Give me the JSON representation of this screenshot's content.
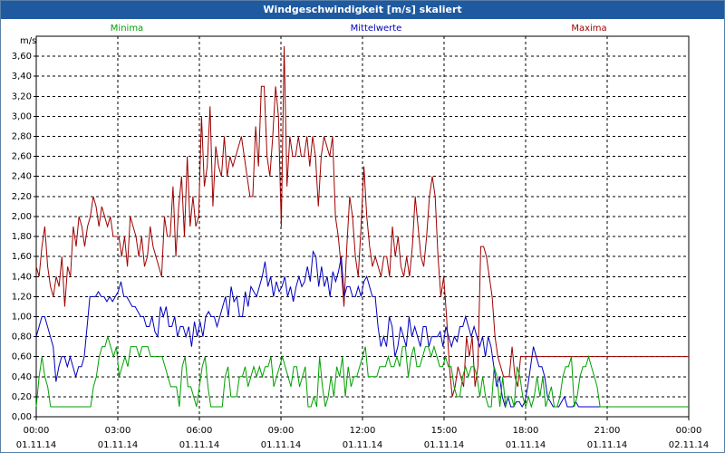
{
  "window": {
    "title": "Windgeschwindigkeit [m/s] skaliert"
  },
  "chart_data": {
    "type": "line",
    "title": "Windgeschwindigkeit [m/s] skaliert",
    "ylabel": "m/s",
    "xlabel": "",
    "ylim": [
      0,
      3.8
    ],
    "xlim": [
      0,
      24
    ],
    "grid": true,
    "legend_position": "top",
    "yticks": [
      "0,00",
      "0,20",
      "0,40",
      "0,60",
      "0,80",
      "1,00",
      "1,20",
      "1,40",
      "1,60",
      "1,80",
      "2,00",
      "2,20",
      "2,40",
      "2,60",
      "2,80",
      "3,00",
      "3,20",
      "3,40",
      "3,60"
    ],
    "xticks": [
      {
        "time": "00:00",
        "date": "01.11.14"
      },
      {
        "time": "03:00",
        "date": "01.11.14"
      },
      {
        "time": "06:00",
        "date": "01.11.14"
      },
      {
        "time": "09:00",
        "date": "01.11.14"
      },
      {
        "time": "12:00",
        "date": "01.11.14"
      },
      {
        "time": "15:00",
        "date": "01.11.14"
      },
      {
        "time": "18:00",
        "date": "01.11.14"
      },
      {
        "time": "21:00",
        "date": "01.11.14"
      },
      {
        "time": "00:00",
        "date": "02.11.14"
      }
    ],
    "series": [
      {
        "name": "Minima",
        "color": "#00a000",
        "values": [
          0.1,
          0.4,
          0.6,
          0.4,
          0.3,
          0.1,
          0.1,
          0.1,
          0.1,
          0.1,
          0.1,
          0.1,
          0.1,
          0.1,
          0.1,
          0.1,
          0.1,
          0.1,
          0.1,
          0.1,
          0.3,
          0.4,
          0.6,
          0.7,
          0.7,
          0.8,
          0.7,
          0.6,
          0.7,
          0.4,
          0.5,
          0.6,
          0.5,
          0.7,
          0.7,
          0.7,
          0.6,
          0.7,
          0.7,
          0.7,
          0.6,
          0.6,
          0.6,
          0.6,
          0.6,
          0.5,
          0.4,
          0.3,
          0.3,
          0.3,
          0.1,
          0.5,
          0.6,
          0.3,
          0.3,
          0.2,
          0.1,
          0.3,
          0.5,
          0.6,
          0.3,
          0.1,
          0.1,
          0.1,
          0.1,
          0.1,
          0.4,
          0.5,
          0.2,
          0.2,
          0.2,
          0.4,
          0.4,
          0.5,
          0.3,
          0.4,
          0.5,
          0.4,
          0.5,
          0.4,
          0.5,
          0.5,
          0.6,
          0.3,
          0.4,
          0.5,
          0.6,
          0.5,
          0.4,
          0.3,
          0.5,
          0.5,
          0.3,
          0.4,
          0.5,
          0.1,
          0.1,
          0.2,
          0.1,
          0.6,
          0.3,
          0.1,
          0.2,
          0.4,
          0.2,
          0.5,
          0.4,
          0.6,
          0.2,
          0.5,
          0.3,
          0.4,
          0.4,
          0.5,
          0.6,
          0.7,
          0.4,
          0.4,
          0.4,
          0.4,
          0.5,
          0.5,
          0.5,
          0.6,
          0.5,
          0.5,
          0.6,
          0.5,
          0.7,
          0.7,
          0.4,
          0.6,
          0.7,
          0.5,
          0.5,
          0.6,
          0.7,
          0.7,
          0.6,
          0.7,
          0.6,
          0.5,
          0.5,
          0.6,
          0.5,
          0.5,
          0.3,
          0.2,
          0.2,
          0.4,
          0.5,
          0.4,
          0.5,
          0.5,
          0.4,
          0.2,
          0.4,
          0.2,
          0.1,
          0.1,
          0.5,
          0.4,
          0.1,
          0.4,
          0.1,
          0.2,
          0.2,
          0.1,
          0.5,
          0.4,
          0.2,
          0.1,
          0.2,
          0.1,
          0.2,
          0.4,
          0.2,
          0.4,
          0.1,
          0.2,
          0.3,
          0.1,
          0.1,
          0.2,
          0.4,
          0.5,
          0.5,
          0.6,
          0.1,
          0.2,
          0.4,
          0.5,
          0.5,
          0.6,
          0.5,
          0.4,
          0.3,
          0.1,
          0.1,
          0.1,
          0.1,
          0.1,
          0.1,
          0.1,
          0.1,
          0.1,
          0.1,
          0.1,
          0.1,
          0.1,
          0.1,
          0.1,
          0.1,
          0.1,
          0.1,
          0.1,
          0.1,
          0.1,
          0.1,
          0.1,
          0.1,
          0.1,
          0.1,
          0.1,
          0.1,
          0.1,
          0.1,
          0.1,
          0.1
        ]
      },
      {
        "name": "Mittelwerte",
        "color": "#0000c0",
        "values": [
          0.8,
          0.9,
          1.0,
          1.0,
          0.9,
          0.8,
          0.7,
          0.35,
          0.5,
          0.6,
          0.6,
          0.5,
          0.6,
          0.5,
          0.4,
          0.5,
          0.5,
          0.6,
          0.9,
          1.2,
          1.2,
          1.2,
          1.25,
          1.2,
          1.2,
          1.15,
          1.2,
          1.15,
          1.2,
          1.25,
          1.35,
          1.2,
          1.2,
          1.15,
          1.1,
          1.1,
          1.05,
          1.0,
          1.0,
          0.9,
          0.9,
          1.0,
          0.85,
          0.8,
          1.1,
          1.0,
          1.1,
          0.9,
          0.9,
          1.0,
          0.8,
          0.9,
          0.9,
          0.8,
          0.9,
          0.7,
          0.95,
          0.8,
          0.95,
          0.8,
          1.0,
          1.05,
          1.0,
          1.0,
          0.9,
          1.0,
          1.1,
          1.2,
          1.0,
          1.3,
          1.15,
          1.2,
          1.0,
          1.0,
          1.25,
          1.1,
          1.3,
          1.25,
          1.2,
          1.3,
          1.4,
          1.55,
          1.3,
          1.4,
          1.2,
          1.35,
          1.25,
          1.3,
          1.4,
          1.2,
          1.3,
          1.15,
          1.3,
          1.4,
          1.3,
          1.35,
          1.5,
          1.35,
          1.65,
          1.6,
          1.3,
          1.5,
          1.3,
          1.4,
          1.2,
          1.45,
          1.35,
          1.45,
          1.6,
          1.2,
          1.3,
          1.3,
          1.2,
          1.2,
          1.3,
          1.2,
          1.35,
          1.4,
          1.3,
          1.2,
          1.2,
          0.9,
          0.7,
          0.8,
          0.7,
          1.0,
          0.9,
          0.6,
          0.7,
          0.9,
          0.8,
          0.7,
          1.0,
          0.8,
          0.9,
          0.8,
          0.7,
          0.9,
          0.9,
          0.7,
          0.8,
          0.8,
          0.8,
          0.85,
          0.7,
          0.9,
          0.8,
          0.7,
          0.8,
          0.75,
          0.9,
          0.9,
          1.0,
          0.9,
          0.8,
          0.9,
          0.8,
          0.7,
          0.8,
          0.6,
          0.8,
          0.7,
          0.5,
          0.3,
          0.4,
          0.2,
          0.1,
          0.2,
          0.1,
          0.1,
          0.15,
          0.15,
          0.1,
          0.15,
          0.3,
          0.5,
          0.7,
          0.6,
          0.5,
          0.5,
          0.4,
          0.2,
          0.15,
          0.1,
          0.1,
          0.1,
          0.15,
          0.2,
          0.1,
          0.1,
          0.1,
          0.15,
          0.1,
          0.1,
          0.1,
          0.1,
          0.1,
          0.1,
          0.1,
          0.1,
          0.1,
          0.1,
          0.1,
          0.1,
          0.1,
          0.1,
          0.1,
          0.1,
          0.1,
          0.1,
          0.1,
          0.1,
          0.1,
          0.1,
          0.1,
          0.1,
          0.1,
          0.1,
          0.1,
          0.1,
          0.1,
          0.1,
          0.1,
          0.1,
          0.1,
          0.1,
          0.1,
          0.1,
          0.1,
          0.1,
          0.1,
          0.1
        ]
      },
      {
        "name": "Maxima",
        "color": "#a00000",
        "values": [
          1.5,
          1.4,
          1.7,
          1.9,
          1.5,
          1.3,
          1.2,
          1.4,
          1.3,
          1.6,
          1.1,
          1.5,
          1.4,
          1.9,
          1.7,
          2.0,
          1.9,
          1.7,
          1.9,
          2.0,
          2.2,
          2.1,
          1.9,
          2.1,
          2.0,
          1.9,
          2.0,
          1.8,
          1.8,
          1.8,
          1.6,
          1.8,
          1.5,
          2.0,
          1.9,
          1.8,
          1.6,
          1.8,
          1.5,
          1.6,
          1.9,
          1.7,
          1.6,
          1.5,
          1.4,
          2.0,
          1.8,
          1.8,
          2.3,
          1.6,
          2.1,
          2.4,
          1.8,
          2.6,
          1.9,
          2.2,
          1.9,
          2.0,
          3.0,
          2.3,
          2.5,
          3.1,
          2.1,
          2.7,
          2.5,
          2.4,
          2.8,
          2.4,
          2.6,
          2.5,
          2.6,
          2.7,
          2.8,
          2.6,
          2.4,
          2.2,
          2.2,
          2.9,
          2.5,
          3.3,
          3.3,
          2.6,
          2.4,
          2.8,
          3.3,
          3.0,
          1.9,
          3.7,
          2.3,
          2.8,
          2.6,
          2.6,
          2.8,
          2.6,
          2.6,
          2.8,
          2.5,
          2.8,
          2.6,
          2.1,
          2.6,
          2.8,
          2.7,
          2.6,
          2.8,
          2.0,
          1.8,
          1.5,
          1.1,
          1.7,
          2.2,
          2.0,
          1.6,
          1.4,
          1.9,
          2.5,
          2.0,
          1.7,
          1.5,
          1.6,
          1.5,
          1.4,
          1.6,
          1.6,
          1.4,
          1.9,
          1.6,
          1.8,
          1.5,
          1.4,
          1.6,
          1.4,
          1.7,
          2.2,
          1.9,
          1.6,
          1.5,
          1.8,
          2.2,
          2.4,
          2.2,
          1.6,
          1.2,
          1.4,
          1.0,
          0.5,
          0.2,
          0.3,
          0.5,
          0.4,
          0.3,
          0.8,
          0.6,
          0.8,
          0.3,
          0.5,
          1.7,
          1.7,
          1.6,
          1.4,
          1.2,
          0.8,
          0.6,
          0.5,
          0.4,
          0.4,
          0.4,
          0.7,
          0.4,
          0.3,
          0.6,
          0.6,
          0.6,
          0.6,
          0.6,
          0.6,
          0.6,
          0.6,
          0.6,
          0.6,
          0.6,
          0.6,
          0.6,
          0.6,
          0.6,
          0.6,
          0.6,
          0.6,
          0.6,
          0.6,
          0.6,
          0.6,
          0.6,
          0.6,
          0.6,
          0.6,
          0.6,
          0.6,
          0.6,
          0.6,
          0.6,
          0.6,
          0.6,
          0.6,
          0.6,
          0.6,
          0.6,
          0.6,
          0.6,
          0.6,
          0.6,
          0.6,
          0.6,
          0.6,
          0.6,
          0.6,
          0.6,
          0.6,
          0.6,
          0.6,
          0.6,
          0.6,
          0.6,
          0.6,
          0.6,
          0.6,
          0.6,
          0.6,
          0.6,
          0.6
        ]
      }
    ]
  }
}
